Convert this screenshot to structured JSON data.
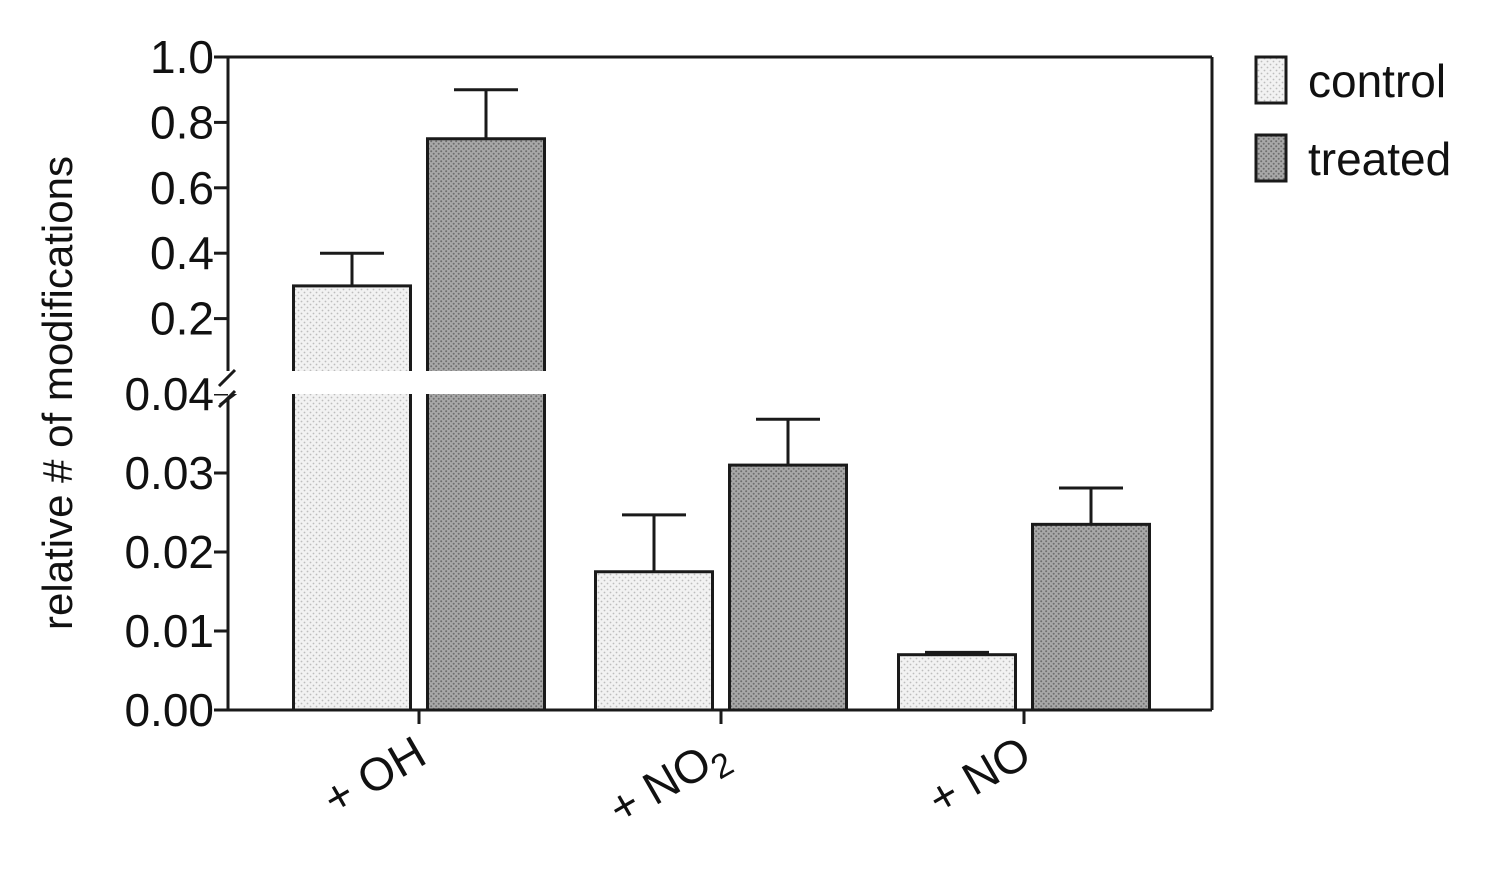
{
  "chart_data": {
    "type": "bar",
    "categories": [
      "+ OH",
      "+ NO",
      "+ NO"
    ],
    "category_subscripts": [
      "",
      "2",
      ""
    ],
    "series": [
      {
        "name": "control",
        "values": [
          0.3,
          0.0175,
          0.007
        ],
        "errors": [
          0.1,
          0.0072,
          0.0003
        ],
        "color": "#eeeeee"
      },
      {
        "name": "treated",
        "values": [
          0.75,
          0.031,
          0.0235
        ],
        "errors": [
          0.15,
          0.0058,
          0.0046
        ],
        "color": "#9e9e9e"
      }
    ],
    "ylabel": "relative # of modifications",
    "xlabel": "",
    "broken_axis": {
      "lower": {
        "range": [
          0,
          0.04
        ],
        "ticks": [
          "0.00",
          "0.01",
          "0.02",
          "0.03",
          "0.04"
        ]
      },
      "upper": {
        "range": [
          0,
          1.0
        ],
        "ticks": [
          "0.2",
          "0.4",
          "0.6",
          "0.8",
          "1.0"
        ]
      }
    },
    "legend_position": "right",
    "grid": false
  }
}
